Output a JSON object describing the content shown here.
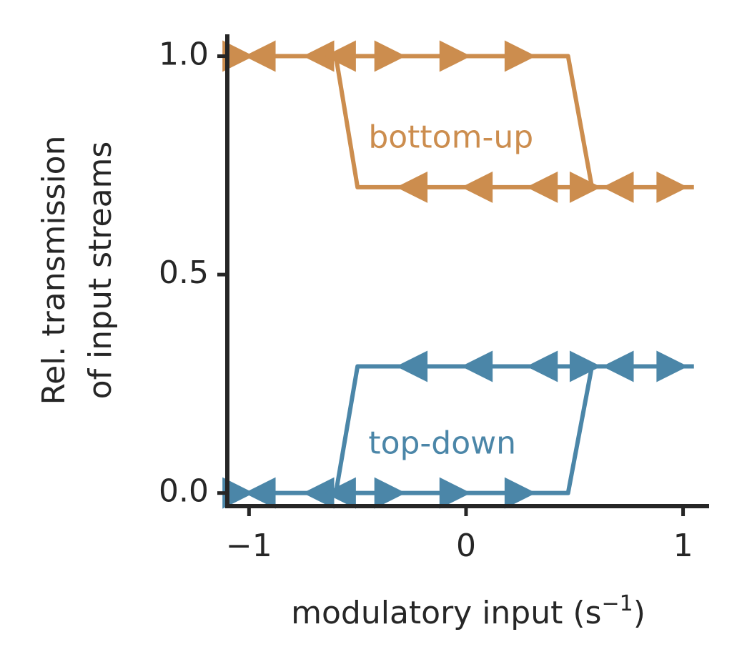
{
  "chart_data": {
    "type": "line",
    "xlabel_main": "modulatory input (s",
    "xlabel_sup": "−1",
    "xlabel_tail": ")",
    "ylabel_line1": "Rel. transmission",
    "ylabel_line2": "of input streams",
    "xlim": [
      -1.1,
      1.12
    ],
    "ylim": [
      -0.03,
      1.05
    ],
    "xticks": [
      -1,
      0,
      1
    ],
    "xtick_labels": [
      "−1",
      "0",
      "1"
    ],
    "yticks": [
      0.0,
      0.5,
      1.0
    ],
    "ytick_labels": [
      "0.0",
      "0.5",
      "1.0"
    ],
    "series": [
      {
        "name": "bottom-up",
        "color": "#cc8d4e",
        "label_pos": [
          -0.45,
          0.81
        ],
        "x": [
          -1.05,
          -0.6,
          -0.5,
          0.58,
          0.47,
          -0.6,
          -1.05
        ],
        "y": [
          1.0,
          1.0,
          0.7,
          0.7,
          1.0,
          1.0,
          1.0
        ],
        "right_markers": [
          [
            -1.05,
            1.0
          ],
          [
            -0.35,
            1.0
          ],
          [
            -0.05,
            1.0
          ],
          [
            0.25,
            1.0
          ],
          [
            0.55,
            0.7
          ],
          [
            0.95,
            0.7
          ]
        ],
        "left_markers": [
          [
            -0.95,
            1.0
          ],
          [
            -0.68,
            1.0
          ],
          [
            -0.58,
            1.0
          ],
          [
            -0.25,
            0.7
          ],
          [
            0.05,
            0.7
          ],
          [
            0.35,
            0.7
          ],
          [
            0.7,
            0.7
          ]
        ],
        "tail": {
          "x": [
            0.58,
            1.05
          ],
          "y": [
            0.7,
            0.7
          ]
        }
      },
      {
        "name": "top-down",
        "color": "#4b86a8",
        "label_pos": [
          -0.45,
          0.11
        ],
        "x": [
          -1.05,
          -0.6,
          -0.5,
          0.58,
          0.47,
          -0.6,
          -1.05
        ],
        "y": [
          0.0,
          0.0,
          0.29,
          0.29,
          0.0,
          0.0,
          0.0
        ],
        "right_markers": [
          [
            -1.05,
            0.0
          ],
          [
            -0.35,
            0.0
          ],
          [
            -0.05,
            0.0
          ],
          [
            0.25,
            0.0
          ],
          [
            0.55,
            0.29
          ],
          [
            0.95,
            0.29
          ]
        ],
        "left_markers": [
          [
            -0.95,
            0.0
          ],
          [
            -0.68,
            0.0
          ],
          [
            -0.58,
            0.0
          ],
          [
            -0.25,
            0.29
          ],
          [
            0.05,
            0.29
          ],
          [
            0.35,
            0.29
          ],
          [
            0.7,
            0.29
          ]
        ],
        "tail": {
          "x": [
            0.58,
            1.05
          ],
          "y": [
            0.29,
            0.29
          ]
        }
      }
    ]
  },
  "colors": {
    "axis": "#262626",
    "bottom_up": "#cc8d4e",
    "top_down": "#4b86a8"
  }
}
